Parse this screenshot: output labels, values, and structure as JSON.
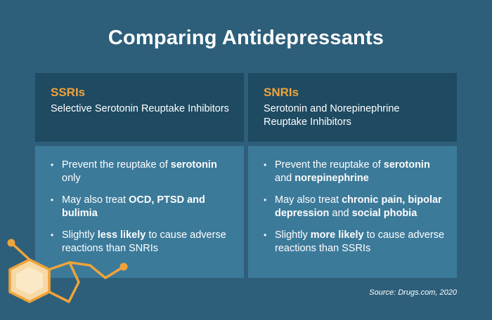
{
  "title": "Comparing Antidepressants",
  "columns": [
    {
      "abbr": "SSRIs",
      "full": "Selective Serotonin Reuptake Inhibitors",
      "items": [
        {
          "a": "Prevent the reuptake of ",
          "b": "serotonin",
          "c": " only",
          "d": "",
          "e": ""
        },
        {
          "a": "May also treat ",
          "b": "OCD, PTSD and bulimia",
          "c": "",
          "d": "",
          "e": ""
        },
        {
          "a": "Slightly ",
          "b": "less likely",
          "c": " to cause adverse reactions than SNRIs",
          "d": "",
          "e": ""
        }
      ]
    },
    {
      "abbr": "SNRIs",
      "full": "Serotonin and Norepinephrine Reuptake Inhibitors",
      "items": [
        {
          "a": "Prevent the reuptake of ",
          "b": "serotonin",
          "c": " and ",
          "d": "norepinephrine",
          "e": ""
        },
        {
          "a": "May also treat ",
          "b": "chronic pain, bipolar depression",
          "c": " and ",
          "d": "social phobia",
          "e": ""
        },
        {
          "a": "Slightly ",
          "b": "more likely",
          "c": " to cause adverse reactions than SSRIs",
          "d": "",
          "e": ""
        }
      ]
    }
  ],
  "bullet": "•",
  "source": "Source: Drugs.com, 2020",
  "colors": {
    "background": "#2e5f7a",
    "header_bg": "#1e4a62",
    "body_bg": "#3c7a9a",
    "accent": "#f0a33a"
  },
  "decoration_icon": "molecule-icon"
}
